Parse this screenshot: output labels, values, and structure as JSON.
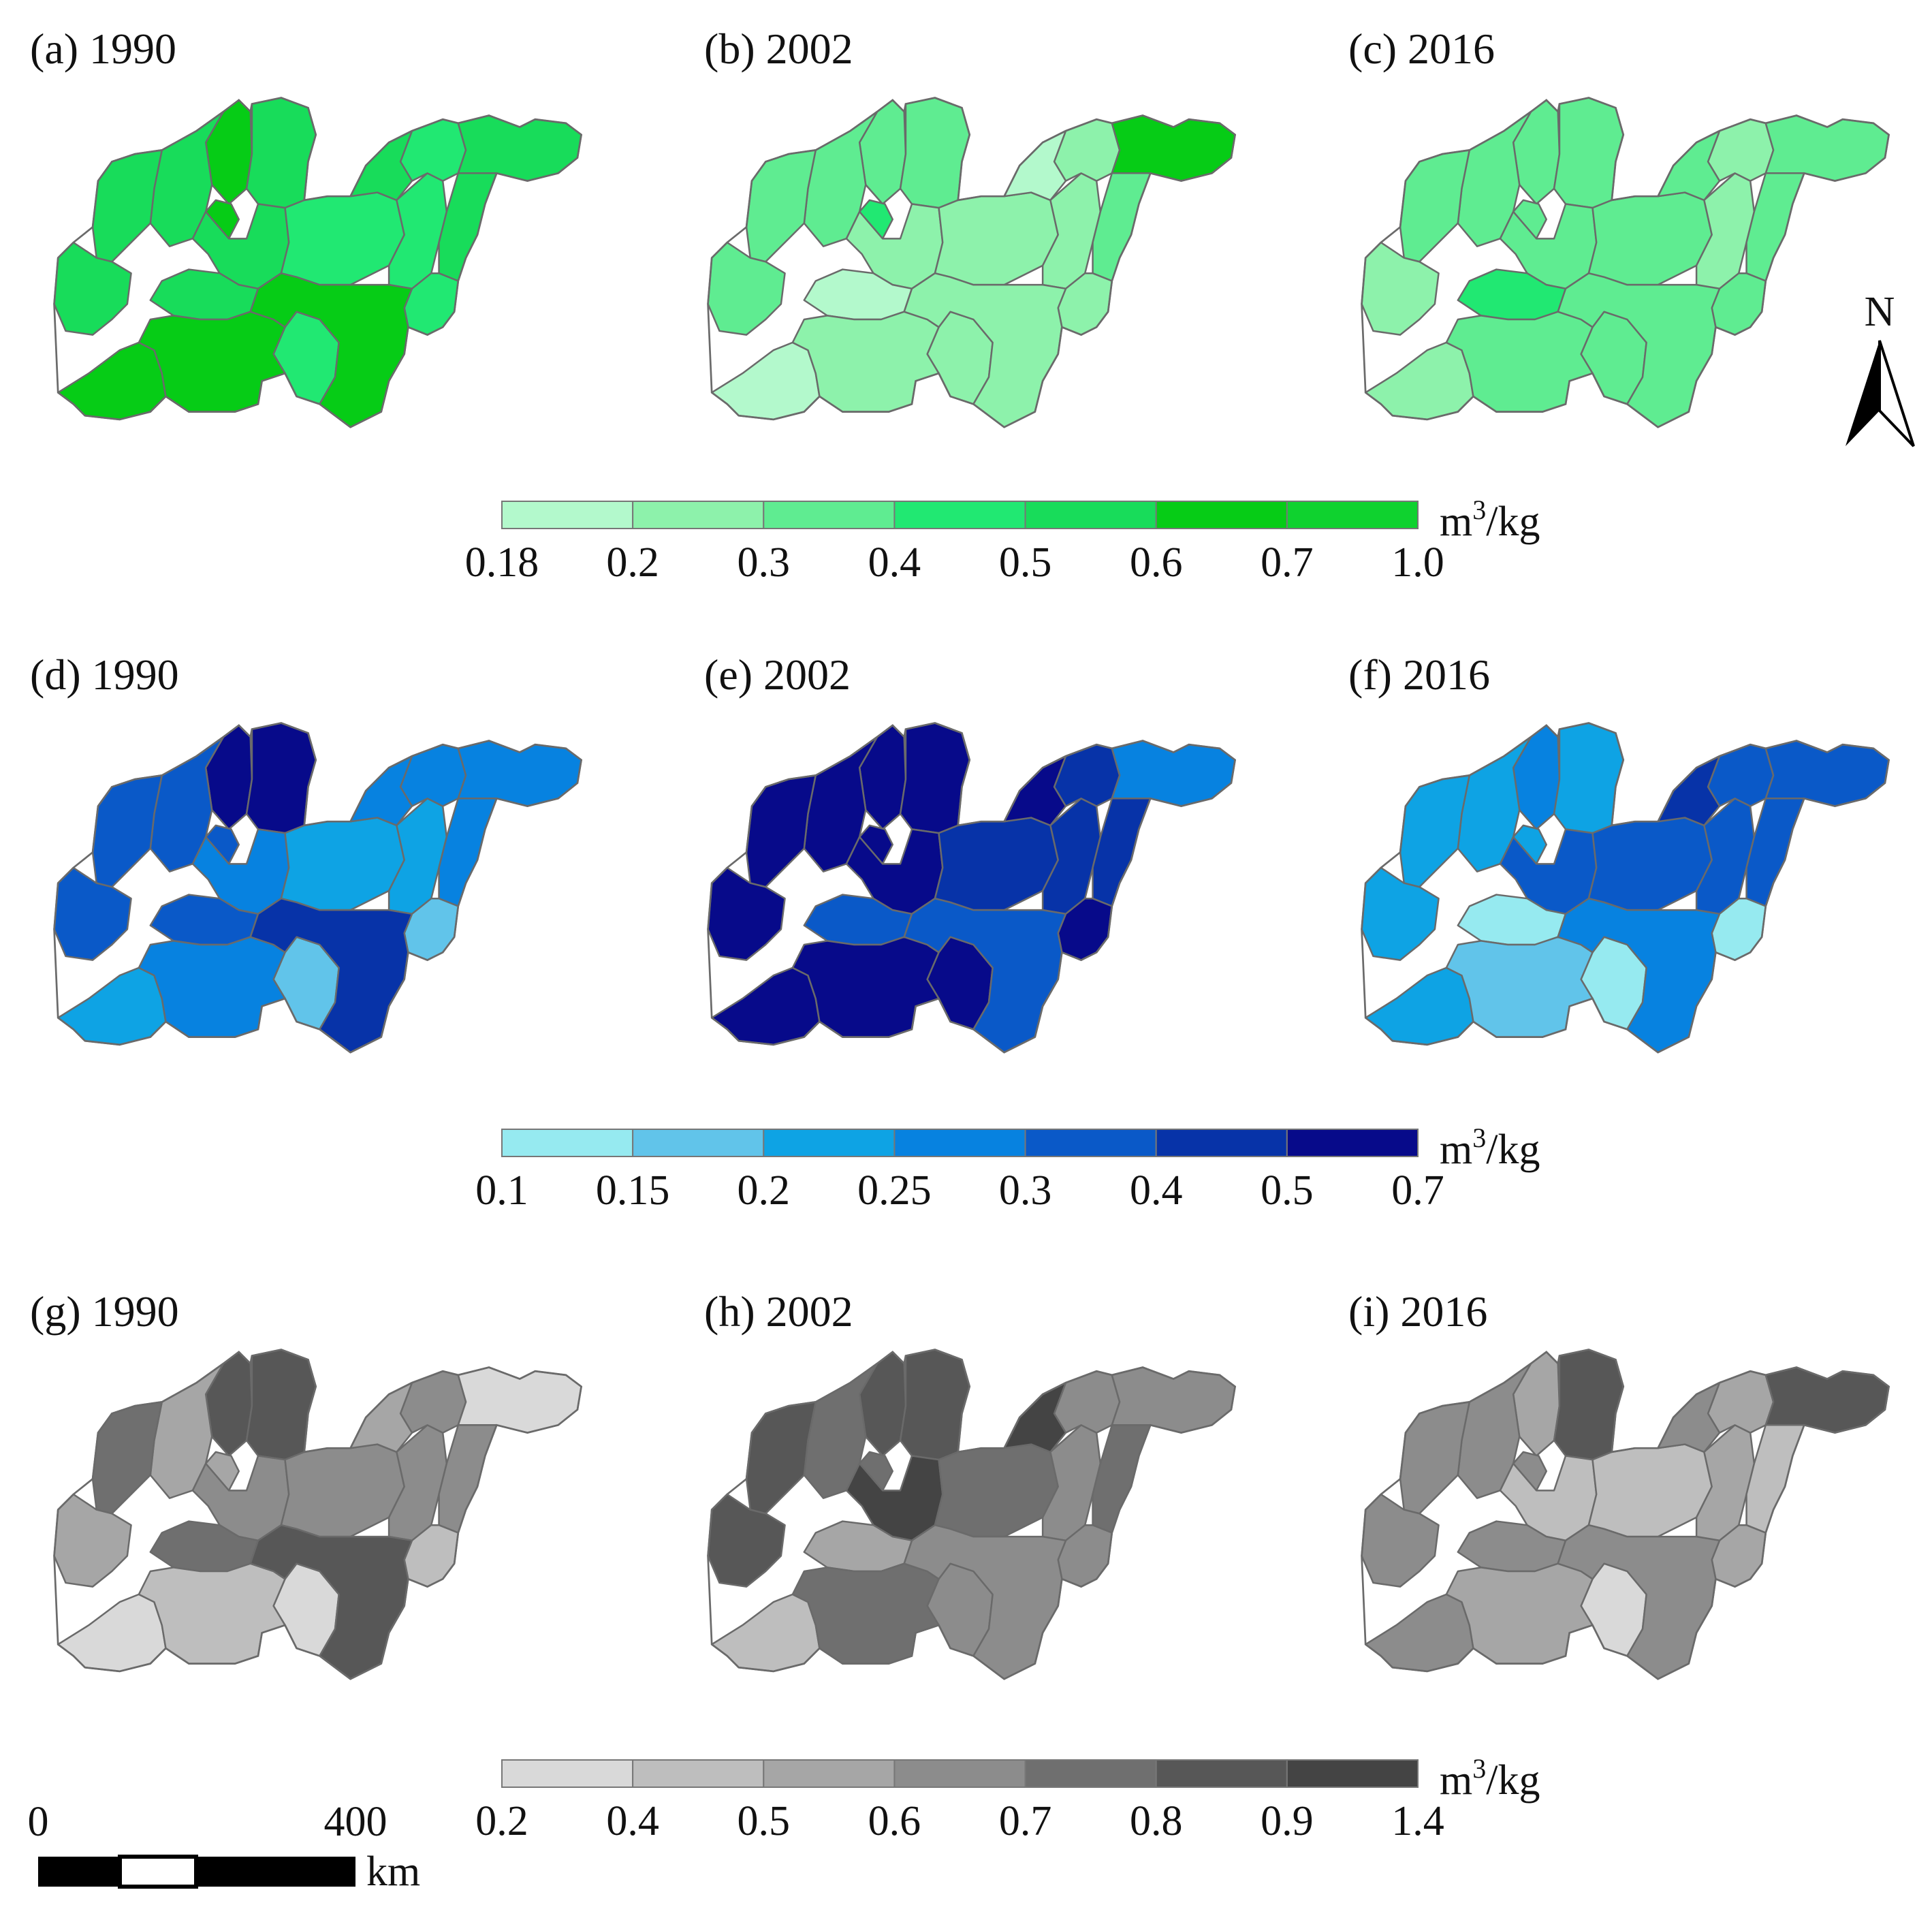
{
  "colors": {
    "green_classes": [
      "#b3f9cc",
      "#8df2ab",
      "#5fec91",
      "#21e872",
      "#18dc5a",
      "#06cc16",
      "#0fd22f"
    ],
    "blue_classes": [
      "#96eaf0",
      "#61c4ea",
      "#0ea3e4",
      "#0782e0",
      "#0a59c8",
      "#0733a8",
      "#070a8a"
    ],
    "gray_classes": [
      "#d9d9d9",
      "#bebebe",
      "#a6a6a6",
      "#8c8c8c",
      "#6f6f6f",
      "#575757",
      "#444444"
    ]
  },
  "maps": [
    {
      "id": "a",
      "label": "(a) 1990",
      "palette": "green",
      "classes": [
        5,
        4,
        5,
        4,
        4,
        4,
        4,
        3,
        3,
        3,
        4,
        4,
        4,
        3,
        3,
        4,
        5,
        5,
        5
      ]
    },
    {
      "id": "b",
      "label": "(b) 2002",
      "palette": "green",
      "classes": [
        2,
        2,
        3,
        2,
        2,
        2,
        1,
        1,
        1,
        1,
        0,
        5,
        2,
        1,
        1,
        0,
        0,
        1,
        1
      ]
    },
    {
      "id": "c",
      "label": "(c) 2016",
      "palette": "green",
      "classes": [
        2,
        2,
        2,
        2,
        2,
        1,
        2,
        2,
        1,
        1,
        2,
        2,
        2,
        2,
        2,
        3,
        1,
        2,
        2
      ]
    },
    {
      "id": "d",
      "label": "(d) 1990",
      "palette": "blue",
      "classes": [
        6,
        6,
        4,
        4,
        4,
        4,
        3,
        2,
        2,
        3,
        3,
        3,
        3,
        1,
        1,
        4,
        2,
        3,
        5
      ]
    },
    {
      "id": "e",
      "label": "(e) 2002",
      "palette": "blue",
      "classes": [
        6,
        6,
        6,
        6,
        6,
        6,
        6,
        5,
        5,
        5,
        6,
        3,
        5,
        6,
        6,
        4,
        6,
        6,
        4
      ]
    },
    {
      "id": "f",
      "label": "(f) 2016",
      "palette": "blue",
      "classes": [
        3,
        2,
        2,
        2,
        2,
        2,
        4,
        4,
        4,
        4,
        5,
        4,
        4,
        0,
        0,
        0,
        2,
        1,
        3
      ]
    },
    {
      "id": "g",
      "label": "(g) 1990",
      "palette": "gray",
      "classes": [
        5,
        5,
        2,
        2,
        4,
        2,
        3,
        3,
        3,
        3,
        2,
        0,
        3,
        1,
        0,
        4,
        0,
        1,
        5
      ]
    },
    {
      "id": "h",
      "label": "(h) 2002",
      "palette": "gray",
      "classes": [
        5,
        5,
        4,
        4,
        5,
        5,
        6,
        4,
        3,
        3,
        6,
        3,
        4,
        3,
        3,
        2,
        1,
        4,
        3
      ]
    },
    {
      "id": "i",
      "label": "(i) 2016",
      "palette": "gray",
      "classes": [
        2,
        5,
        3,
        3,
        3,
        3,
        1,
        1,
        2,
        2,
        3,
        5,
        1,
        2,
        0,
        3,
        3,
        2,
        3
      ]
    }
  ],
  "legends": [
    {
      "palette": "green",
      "ticks": [
        "0.18",
        "0.2",
        "0.3",
        "0.4",
        "0.5",
        "0.6",
        "0.7",
        "1.0"
      ],
      "unit": "m",
      "unit_exp": "3",
      "unit_tail": "/kg"
    },
    {
      "palette": "blue",
      "ticks": [
        "0.1",
        "0.15",
        "0.2",
        "0.25",
        "0.3",
        "0.4",
        "0.5",
        "0.7"
      ],
      "unit": "m",
      "unit_exp": "3",
      "unit_tail": "/kg"
    },
    {
      "palette": "gray",
      "ticks": [
        "0.2",
        "0.4",
        "0.5",
        "0.6",
        "0.7",
        "0.8",
        "0.9",
        "1.4"
      ],
      "unit": "m",
      "unit_exp": "3",
      "unit_tail": "/kg"
    }
  ],
  "north_arrow": {
    "label": "N"
  },
  "scale_bar": {
    "start_label": "0",
    "end_label": "400",
    "unit": "km"
  }
}
